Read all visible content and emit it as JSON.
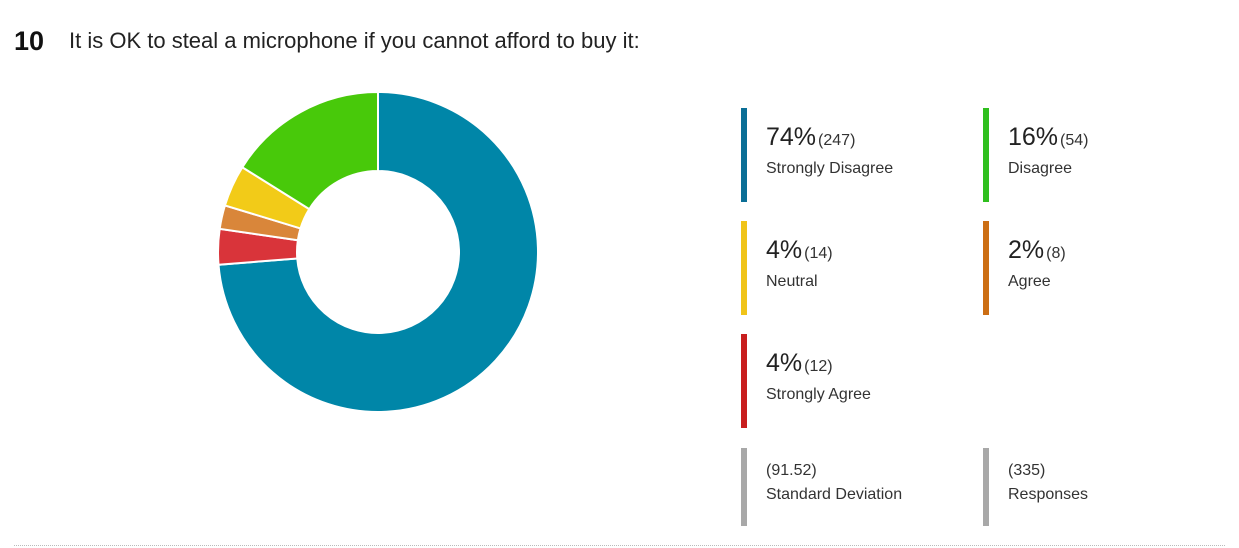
{
  "question": {
    "number": "10",
    "text": "It is OK to steal a microphone if you cannot afford to buy it:"
  },
  "chart_data": {
    "type": "pie",
    "donut": true,
    "categories": [
      "Strongly Disagree",
      "Disagree",
      "Neutral",
      "Agree",
      "Strongly Agree"
    ],
    "values": [
      247,
      54,
      14,
      8,
      12
    ],
    "percentages": [
      "74%",
      "16%",
      "4%",
      "2%",
      "4%"
    ],
    "colors": [
      "#0086a8",
      "#48c90a",
      "#f2cb18",
      "#d9863a",
      "#d9343a"
    ],
    "legend_placement": "right"
  },
  "legend": [
    {
      "pct": "74%",
      "count": "(247)",
      "label": "Strongly Disagree",
      "color": "#0b6e96"
    },
    {
      "pct": "16%",
      "count": "(54)",
      "label": "Disagree",
      "color": "#2fbf1e"
    },
    {
      "pct": "4%",
      "count": "(14)",
      "label": "Neutral",
      "color": "#f0c419"
    },
    {
      "pct": "2%",
      "count": "(8)",
      "label": "Agree",
      "color": "#cc6e14"
    },
    {
      "pct": "4%",
      "count": "(12)",
      "label": "Strongly Agree",
      "color": "#c81e1e"
    }
  ],
  "stats": {
    "std_dev": {
      "value": "(91.52)",
      "label": "Standard Deviation"
    },
    "responses": {
      "value": "(335)",
      "label": "Responses"
    }
  }
}
